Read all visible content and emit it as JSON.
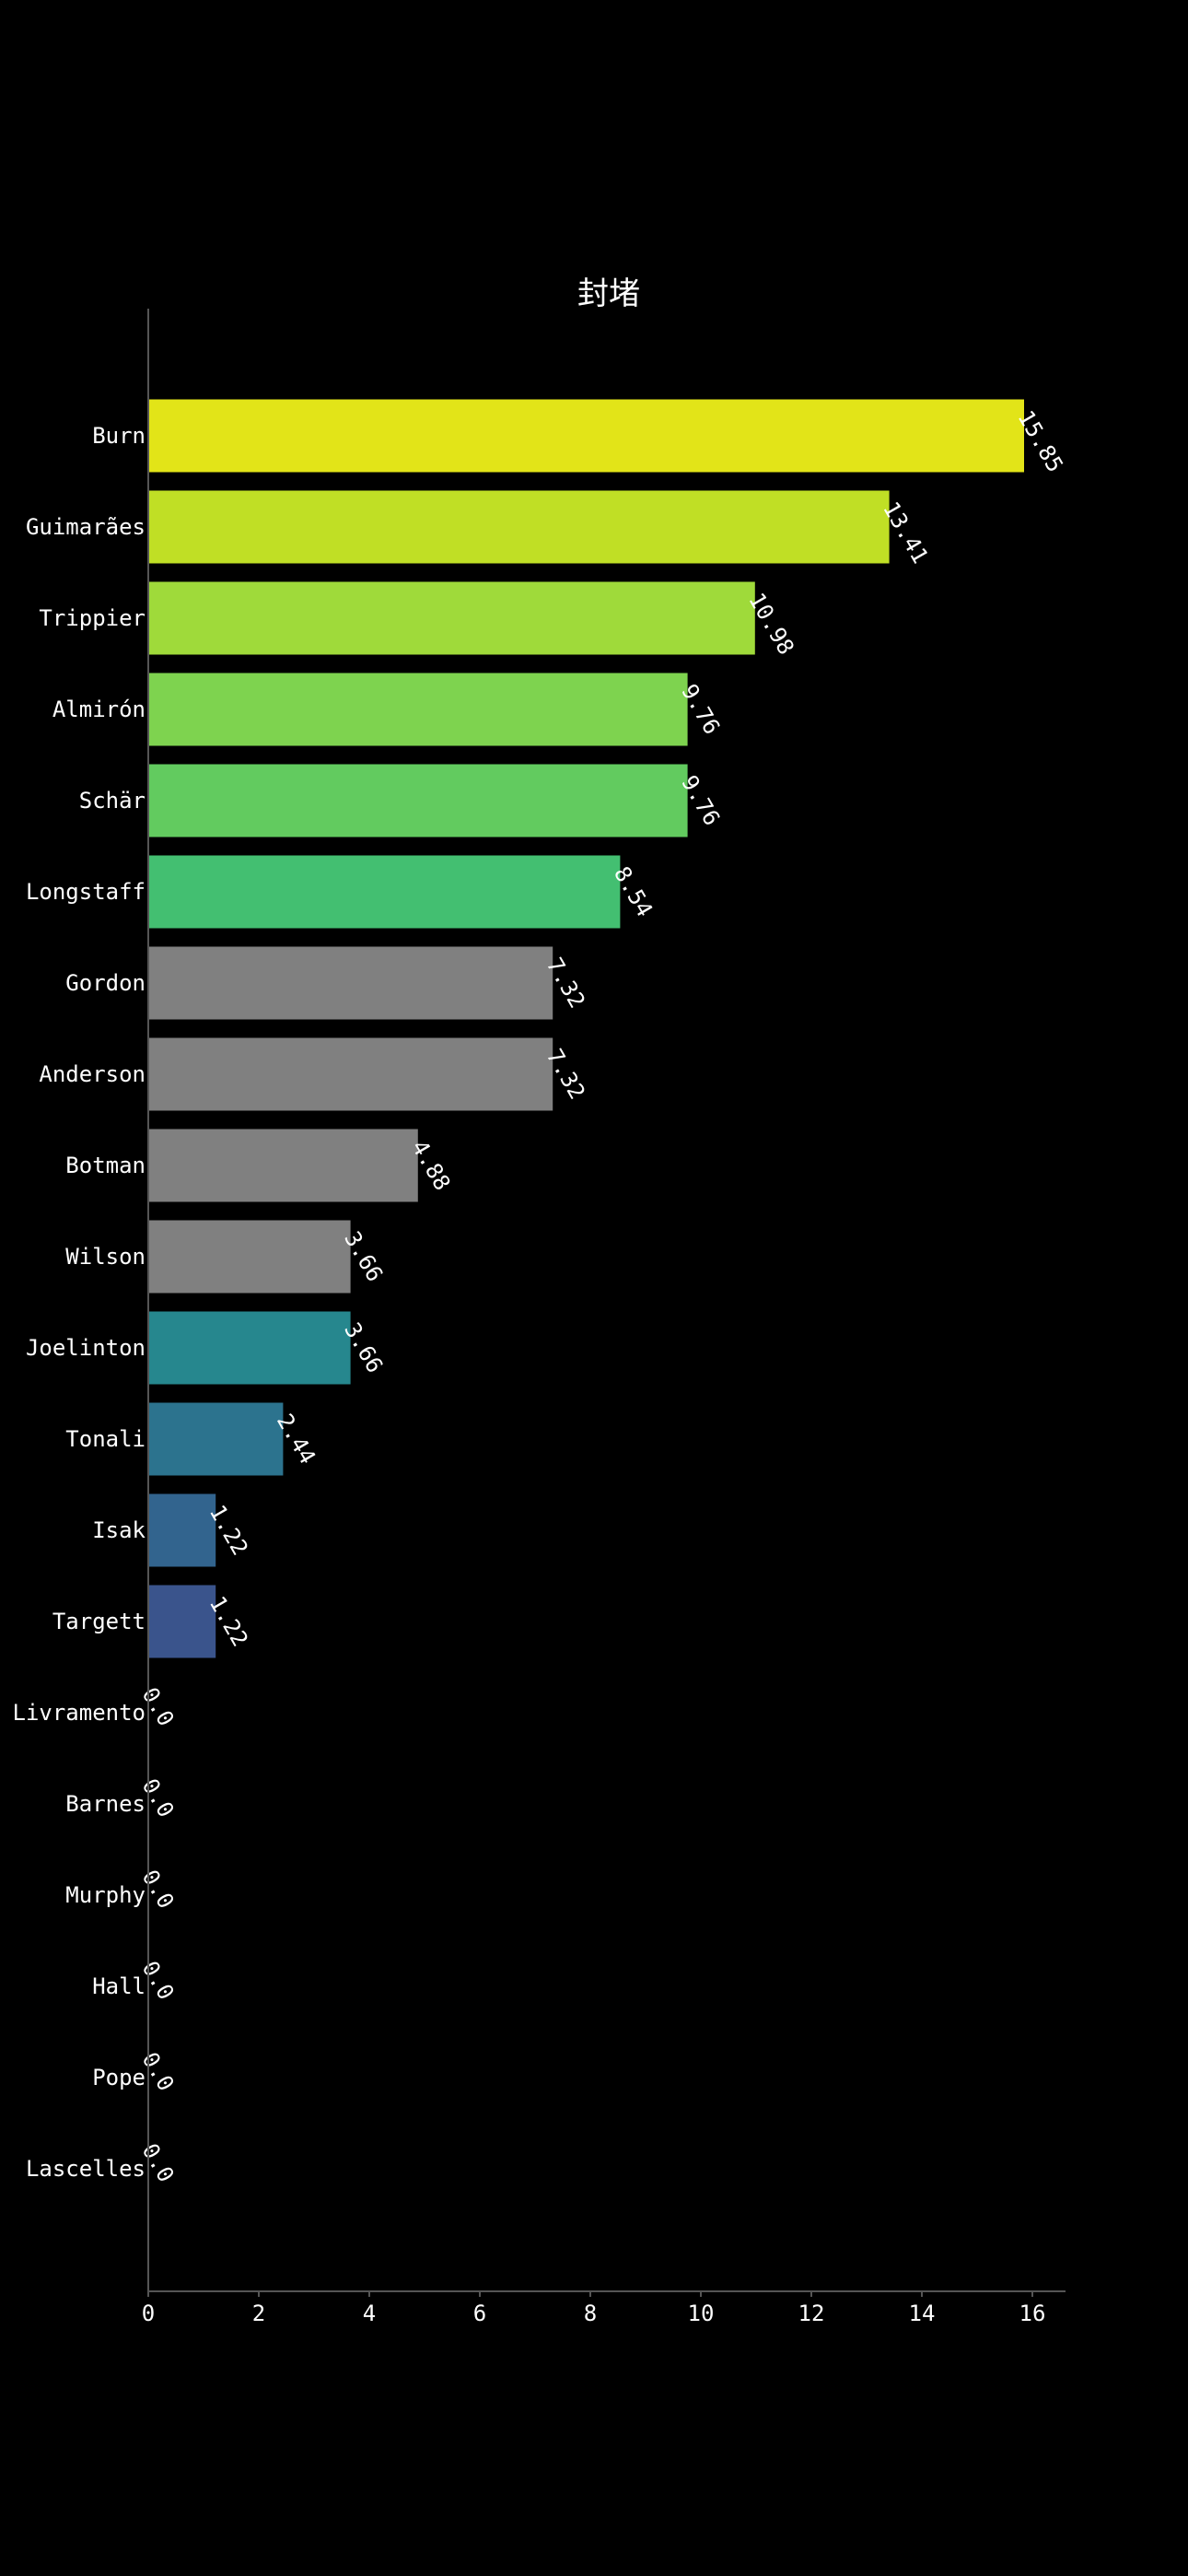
{
  "chart_data": {
    "type": "bar",
    "orientation": "horizontal",
    "title": "封堵",
    "xlabel": "",
    "ylabel": "",
    "xlim": [
      0,
      16.6
    ],
    "xticks": [
      0,
      2,
      4,
      6,
      8,
      10,
      12,
      14,
      16
    ],
    "grid": false,
    "categories": [
      "Burn",
      "Guimarães",
      "Trippier",
      "Almirón",
      "Schär",
      "Longstaff",
      "Gordon",
      "Anderson",
      "Botman",
      "Wilson",
      "Joelinton",
      "Tonali",
      "Isak",
      "Targett",
      "Livramento",
      "Barnes",
      "Murphy",
      "Hall",
      "Pope",
      "Lascelles"
    ],
    "values": [
      15.85,
      13.41,
      10.98,
      9.76,
      9.76,
      8.54,
      7.32,
      7.32,
      4.88,
      3.66,
      3.66,
      2.44,
      1.22,
      1.22,
      0.0,
      0.0,
      0.0,
      0.0,
      0.0,
      0.0
    ],
    "value_labels": [
      "15.85",
      "13.41",
      "10.98",
      "9.76",
      "9.76",
      "8.54",
      "7.32",
      "7.32",
      "4.88",
      "3.66",
      "3.66",
      "2.44",
      "1.22",
      "1.22",
      "0.0",
      "0.0",
      "0.0",
      "0.0",
      "0.0",
      "0.0"
    ],
    "colors": [
      "#e2e418",
      "#c0df25",
      "#9fda3a",
      "#7ed34f",
      "#62cb5f",
      "#43bf71",
      "#808080",
      "#808080",
      "#808080",
      "#808080",
      "#26878e",
      "#2c738e",
      "#32648e",
      "#3a548c",
      "#3e4a89",
      "#433e85",
      "#46307e",
      "#482374",
      "#481467",
      "#440154"
    ],
    "background": "#000000",
    "text_color": "#ffffff",
    "axis_color": "#555555"
  }
}
